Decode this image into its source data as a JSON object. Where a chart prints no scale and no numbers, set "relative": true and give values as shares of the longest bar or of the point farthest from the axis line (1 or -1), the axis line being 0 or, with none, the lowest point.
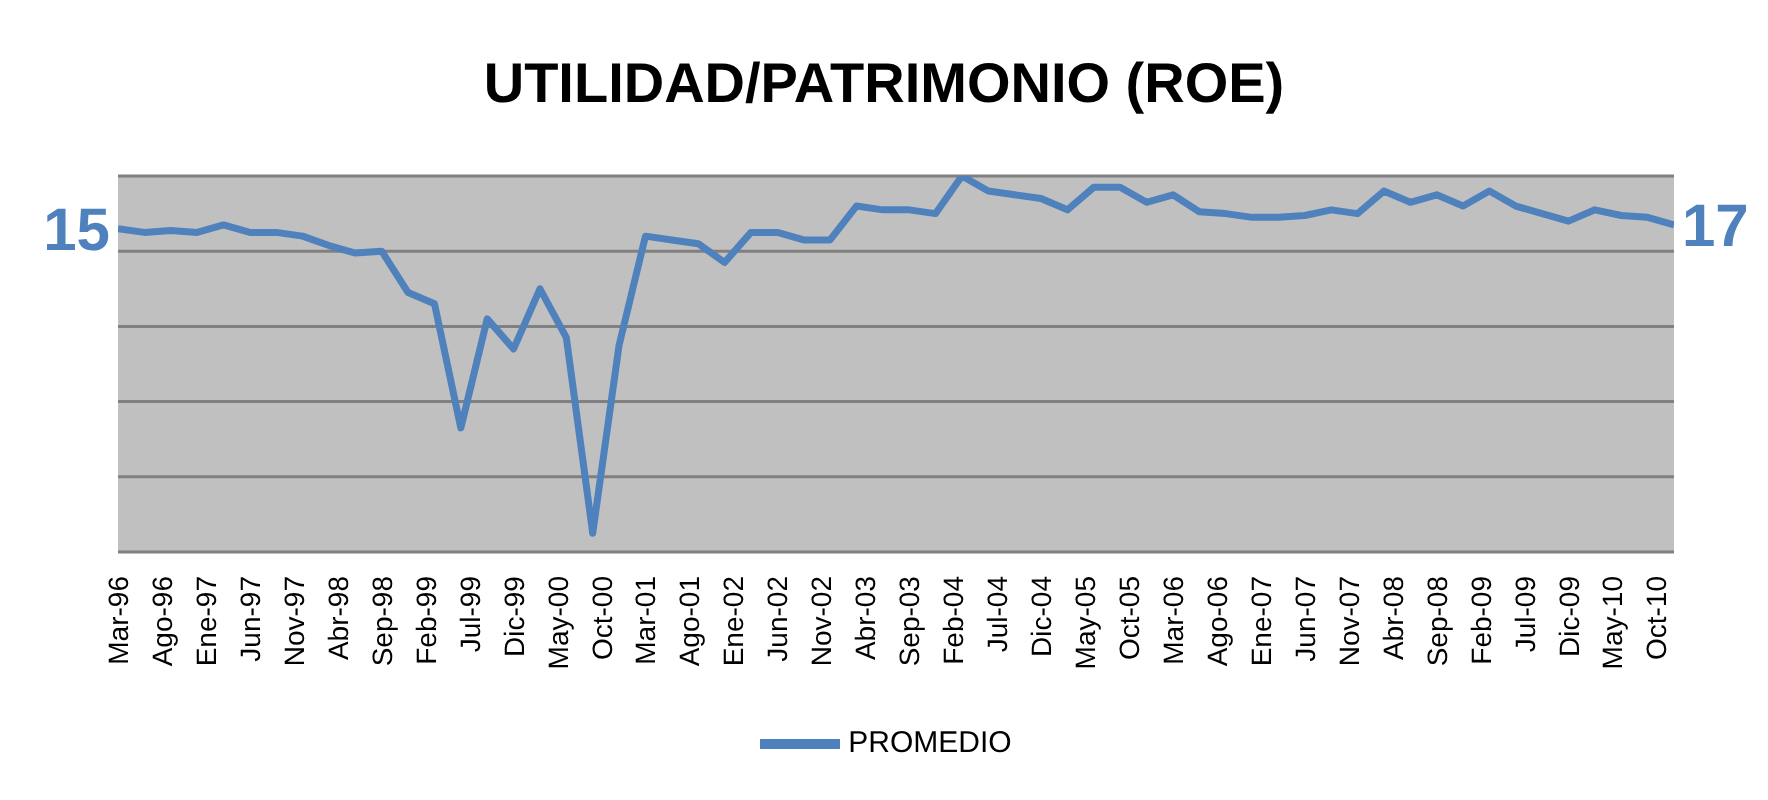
{
  "chart_data": {
    "type": "line",
    "title": "UTILIDAD/PATRIMONIO (ROE)",
    "x": [
      "1996-03",
      "1996-06",
      "1996-09",
      "1996-12",
      "1997-03",
      "1997-06",
      "1997-09",
      "1997-12",
      "1998-03",
      "1998-06",
      "1998-09",
      "1998-12",
      "1999-03",
      "1999-06",
      "1999-09",
      "1999-12",
      "2000-03",
      "2000-06",
      "2000-09",
      "2000-12",
      "2001-03",
      "2001-06",
      "2001-09",
      "2001-12",
      "2002-03",
      "2002-06",
      "2002-09",
      "2002-12",
      "2003-03",
      "2003-06",
      "2003-09",
      "2003-12",
      "2004-03",
      "2004-06",
      "2004-09",
      "2004-12",
      "2005-03",
      "2005-06",
      "2005-09",
      "2005-12",
      "2006-03",
      "2006-06",
      "2006-09",
      "2006-12",
      "2007-03",
      "2007-06",
      "2007-09",
      "2007-12",
      "2008-03",
      "2008-06",
      "2008-09",
      "2008-12",
      "2009-03",
      "2009-06",
      "2009-09",
      "2009-12",
      "2010-03",
      "2010-06",
      "2010-09",
      "2010-12"
    ],
    "series": [
      {
        "name": "PROMEDIO",
        "color": "#4f81bd",
        "values": [
          0.86,
          0.85,
          0.855,
          0.85,
          0.87,
          0.85,
          0.85,
          0.84,
          0.815,
          0.795,
          0.8,
          0.69,
          0.66,
          0.33,
          0.62,
          0.54,
          0.7,
          0.57,
          0.05,
          0.55,
          0.84,
          0.83,
          0.82,
          0.77,
          0.85,
          0.85,
          0.83,
          0.83,
          0.92,
          0.91,
          0.91,
          0.9,
          1,
          0.96,
          0.95,
          0.94,
          0.91,
          0.97,
          0.97,
          0.93,
          0.95,
          0.905,
          0.9,
          0.89,
          0.89,
          0.895,
          0.91,
          0.9,
          0.96,
          0.93,
          0.95,
          0.92,
          0.96,
          0.92,
          0.9,
          0.88,
          0.91,
          0.895,
          0.89,
          0.87
        ]
      }
    ],
    "relative": true,
    "xlim": [
      "1996-03",
      "2010-12"
    ],
    "xticks": [
      {
        "value": "1996-03",
        "label": "Mar-96"
      },
      {
        "value": "1996-08",
        "label": "Ago-96"
      },
      {
        "value": "1997-01",
        "label": "Ene-97"
      },
      {
        "value": "1997-06",
        "label": "Jun-97"
      },
      {
        "value": "1997-11",
        "label": "Nov-97"
      },
      {
        "value": "1998-04",
        "label": "Abr-98"
      },
      {
        "value": "1998-09",
        "label": "Sep-98"
      },
      {
        "value": "1999-02",
        "label": "Feb-99"
      },
      {
        "value": "1999-07",
        "label": "Jul-99"
      },
      {
        "value": "1999-12",
        "label": "Dic-99"
      },
      {
        "value": "2000-05",
        "label": "May-00"
      },
      {
        "value": "2000-10",
        "label": "Oct-00"
      },
      {
        "value": "2001-03",
        "label": "Mar-01"
      },
      {
        "value": "2001-08",
        "label": "Ago-01"
      },
      {
        "value": "2002-01",
        "label": "Ene-02"
      },
      {
        "value": "2002-06",
        "label": "Jun-02"
      },
      {
        "value": "2002-11",
        "label": "Nov-02"
      },
      {
        "value": "2003-04",
        "label": "Abr-03"
      },
      {
        "value": "2003-09",
        "label": "Sep-03"
      },
      {
        "value": "2004-02",
        "label": "Feb-04"
      },
      {
        "value": "2004-07",
        "label": "Jul-04"
      },
      {
        "value": "2004-12",
        "label": "Dic-04"
      },
      {
        "value": "2005-05",
        "label": "May-05"
      },
      {
        "value": "2005-10",
        "label": "Oct-05"
      },
      {
        "value": "2006-03",
        "label": "Mar-06"
      },
      {
        "value": "2006-08",
        "label": "Ago-06"
      },
      {
        "value": "2007-01",
        "label": "Ene-07"
      },
      {
        "value": "2007-06",
        "label": "Jun-07"
      },
      {
        "value": "2007-11",
        "label": "Nov-07"
      },
      {
        "value": "2008-04",
        "label": "Abr-08"
      },
      {
        "value": "2008-09",
        "label": "Sep-08"
      },
      {
        "value": "2009-02",
        "label": "Feb-09"
      },
      {
        "value": "2009-07",
        "label": "Jul-09"
      },
      {
        "value": "2009-12",
        "label": "Dic-09"
      },
      {
        "value": "2010-05",
        "label": "May-10"
      },
      {
        "value": "2010-10",
        "label": "Oct-10"
      }
    ],
    "annotations": [
      {
        "text": "15",
        "x": "1996-03",
        "y": 0.86
      },
      {
        "text": "17",
        "x": "2010-12",
        "y": 0.87
      }
    ],
    "grid": "y",
    "legend": "bottom",
    "marker": "none",
    "line_style": "solid"
  }
}
